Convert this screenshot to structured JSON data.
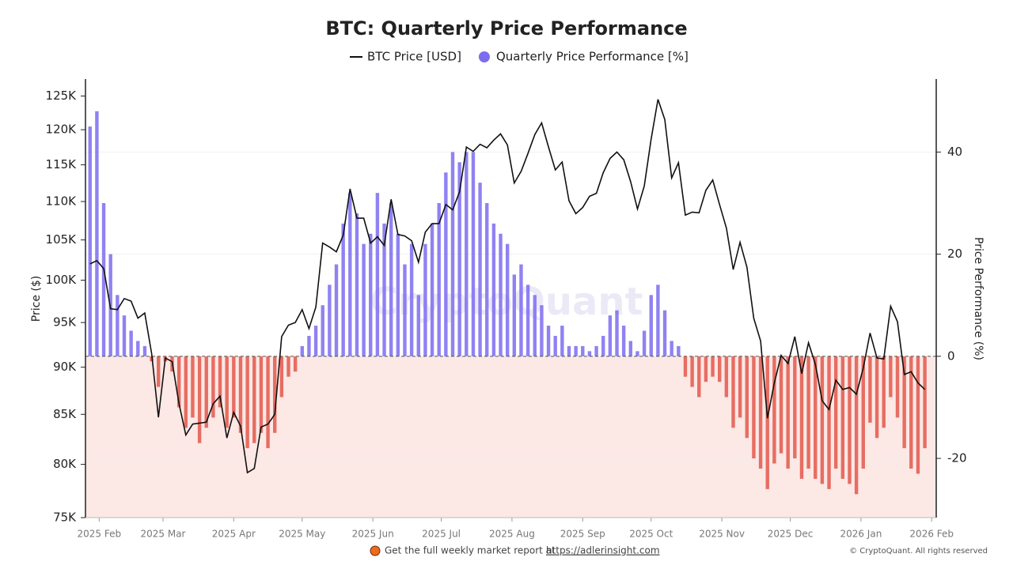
{
  "chart_data": {
    "type": "line_bar",
    "title": "BTC: Quarterly Price Performance",
    "y_label": "Price ($)",
    "y2_label": "Price Performance (%)",
    "watermark": "CryptoQuant",
    "footer": {
      "text": "Get the full weekly market report at",
      "link": "https://adlerinsight.com",
      "copyright": "© CryptoQuant. All rights reserved"
    },
    "ylog": true,
    "grid": true,
    "xlim": [
      "2025-01-26",
      "2026-02-03"
    ],
    "xticks": [
      {
        "value": "2025-02-01",
        "label": "2025 Feb"
      },
      {
        "value": "2025-03-01",
        "label": "2025 Mar"
      },
      {
        "value": "2025-04-01",
        "label": "2025 Apr"
      },
      {
        "value": "2025-05-01",
        "label": "2025 May"
      },
      {
        "value": "2025-06-01",
        "label": "2025 Jun"
      },
      {
        "value": "2025-07-01",
        "label": "2025 Jul"
      },
      {
        "value": "2025-08-01",
        "label": "2025 Aug"
      },
      {
        "value": "2025-09-01",
        "label": "2025 Sep"
      },
      {
        "value": "2025-10-01",
        "label": "2025 Oct"
      },
      {
        "value": "2025-11-01",
        "label": "2025 Nov"
      },
      {
        "value": "2025-12-01",
        "label": "2025 Dec"
      },
      {
        "value": "2026-01-01",
        "label": "2026 Jan"
      },
      {
        "value": "2026-02-01",
        "label": "2026 Feb"
      }
    ],
    "ylim": [
      75000,
      127600
    ],
    "yticks": [
      {
        "value": 75000,
        "label": "75K"
      },
      {
        "value": 80000,
        "label": "80K"
      },
      {
        "value": 85000,
        "label": "85K"
      },
      {
        "value": 90000,
        "label": "90K"
      },
      {
        "value": 95000,
        "label": "95K"
      },
      {
        "value": 100000,
        "label": "100K"
      },
      {
        "value": 105000,
        "label": "105K"
      },
      {
        "value": 110000,
        "label": "110K"
      },
      {
        "value": 115000,
        "label": "115K"
      },
      {
        "value": 120000,
        "label": "120K"
      },
      {
        "value": 125000,
        "label": "125K"
      }
    ],
    "y2lim": [
      -31.6,
      54.3
    ],
    "y2ticks": [
      -20,
      0,
      20,
      40
    ],
    "negative_region_color": "#fce8e5",
    "x": [
      "2025-01-28",
      "2025-01-31",
      "2025-02-03",
      "2025-02-06",
      "2025-02-09",
      "2025-02-12",
      "2025-02-15",
      "2025-02-18",
      "2025-02-21",
      "2025-02-24",
      "2025-02-27",
      "2025-03-02",
      "2025-03-05",
      "2025-03-08",
      "2025-03-11",
      "2025-03-14",
      "2025-03-17",
      "2025-03-20",
      "2025-03-23",
      "2025-03-26",
      "2025-03-29",
      "2025-04-01",
      "2025-04-04",
      "2025-04-07",
      "2025-04-10",
      "2025-04-13",
      "2025-04-16",
      "2025-04-19",
      "2025-04-22",
      "2025-04-25",
      "2025-04-28",
      "2025-05-01",
      "2025-05-04",
      "2025-05-07",
      "2025-05-10",
      "2025-05-13",
      "2025-05-16",
      "2025-05-19",
      "2025-05-22",
      "2025-05-25",
      "2025-05-28",
      "2025-05-31",
      "2025-06-03",
      "2025-06-06",
      "2025-06-09",
      "2025-06-12",
      "2025-06-15",
      "2025-06-18",
      "2025-06-21",
      "2025-06-24",
      "2025-06-27",
      "2025-06-30",
      "2025-07-03",
      "2025-07-06",
      "2025-07-09",
      "2025-07-12",
      "2025-07-15",
      "2025-07-18",
      "2025-07-21",
      "2025-07-24",
      "2025-07-27",
      "2025-07-30",
      "2025-08-02",
      "2025-08-05",
      "2025-08-08",
      "2025-08-11",
      "2025-08-14",
      "2025-08-17",
      "2025-08-20",
      "2025-08-23",
      "2025-08-26",
      "2025-08-29",
      "2025-09-01",
      "2025-09-04",
      "2025-09-07",
      "2025-09-10",
      "2025-09-13",
      "2025-09-16",
      "2025-09-19",
      "2025-09-22",
      "2025-09-25",
      "2025-09-28",
      "2025-10-01",
      "2025-10-04",
      "2025-10-07",
      "2025-10-10",
      "2025-10-13",
      "2025-10-16",
      "2025-10-19",
      "2025-10-22",
      "2025-10-25",
      "2025-10-28",
      "2025-10-31",
      "2025-11-03",
      "2025-11-06",
      "2025-11-09",
      "2025-11-12",
      "2025-11-15",
      "2025-11-18",
      "2025-11-21",
      "2025-11-24",
      "2025-11-27",
      "2025-11-30",
      "2025-12-03",
      "2025-12-06",
      "2025-12-09",
      "2025-12-12",
      "2025-12-15",
      "2025-12-18",
      "2025-12-21",
      "2025-12-24",
      "2025-12-27",
      "2025-12-30",
      "2026-01-02",
      "2026-01-05",
      "2026-01-08",
      "2026-01-11",
      "2026-01-14",
      "2026-01-17",
      "2026-01-20",
      "2026-01-23",
      "2026-01-26",
      "2026-01-29"
    ],
    "series": [
      {
        "name": "BTC Price [USD]",
        "axis": "y",
        "kind": "line",
        "color": "#111111",
        "values": [
          102000,
          102400,
          101400,
          96600,
          96500,
          97800,
          97500,
          95500,
          96100,
          91500,
          84700,
          91000,
          90600,
          86100,
          82900,
          84000,
          84100,
          84200,
          86100,
          86900,
          82600,
          85200,
          83800,
          79200,
          79600,
          83700,
          84000,
          85000,
          93400,
          94700,
          95000,
          96500,
          94300,
          96800,
          104600,
          104100,
          103500,
          105600,
          111700,
          107800,
          107800,
          104600,
          105400,
          104300,
          110300,
          105700,
          105500,
          104900,
          102200,
          106000,
          107100,
          107100,
          109600,
          108900,
          111300,
          117500,
          116900,
          117900,
          117400,
          118500,
          119400,
          117800,
          112500,
          114100,
          116600,
          119300,
          121000,
          117500,
          114300,
          115400,
          110100,
          108400,
          109200,
          110700,
          111100,
          113900,
          115900,
          116800,
          115700,
          112700,
          109000,
          112100,
          118600,
          124500,
          121500,
          113200,
          115300,
          108200,
          108600,
          108500,
          111500,
          112900,
          109600,
          106500,
          101300,
          104700,
          101600,
          95500,
          92900,
          84600,
          88300,
          91300,
          90400,
          93400,
          89300,
          92700,
          90300,
          86400,
          85500,
          88600,
          87600,
          87800,
          87100,
          89900,
          93800,
          91000,
          90900,
          96900,
          95100,
          89200,
          89500,
          88300,
          87600
        ]
      },
      {
        "name": "Quarterly Price Performance [%]",
        "axis": "y2",
        "kind": "bar",
        "color": "#7b6cf0",
        "negative_color": "#e3574b",
        "values": [
          45,
          48,
          30,
          20,
          12,
          8,
          5,
          3,
          2,
          -1,
          -6,
          -1,
          -3,
          -10,
          -14,
          -12,
          -17,
          -14,
          -12,
          -10,
          -14,
          -12,
          -15,
          -18,
          -17,
          -15,
          -18,
          -15,
          -8,
          -4,
          -3,
          2,
          4,
          6,
          10,
          14,
          18,
          26,
          32,
          28,
          22,
          24,
          32,
          26,
          30,
          24,
          18,
          22,
          12,
          22,
          26,
          30,
          36,
          40,
          38,
          40,
          40,
          34,
          30,
          26,
          24,
          22,
          16,
          18,
          14,
          12,
          10,
          6,
          4,
          6,
          2,
          2,
          2,
          1,
          2,
          4,
          8,
          9,
          6,
          3,
          1,
          5,
          12,
          14,
          9,
          3,
          2,
          -4,
          -6,
          -8,
          -5,
          -4,
          -5,
          -8,
          -14,
          -12,
          -16,
          -20,
          -22,
          -26,
          -21,
          -19,
          -22,
          -20,
          -24,
          -22,
          -24,
          -25,
          -26,
          -22,
          -24,
          -25,
          -27,
          -22,
          -13,
          -16,
          -14,
          -8,
          -12,
          -18,
          -22,
          -23,
          -18
        ]
      }
    ]
  }
}
